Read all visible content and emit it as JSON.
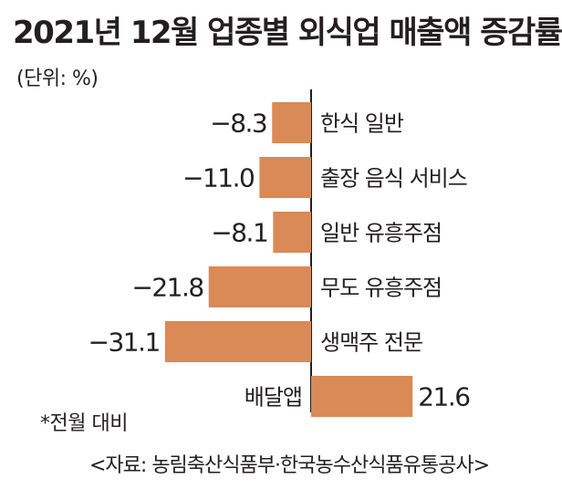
{
  "title": "2021년 12월 업종별 외식업 매출액 증감률",
  "unit": "(단위: %)",
  "note": "*전월 대비",
  "source": "<자료: 농림축산식품부·한국농수산식품유통공사>",
  "colors": {
    "bar": "#d98a56",
    "axis": "#231f20",
    "text": "#231f20"
  },
  "chart_data": {
    "type": "bar",
    "orientation": "horizontal",
    "title": "2021년 12월 업종별 외식업 매출액 증감률",
    "unit": "%",
    "categories": [
      "한식 일반",
      "출장 음식 서비스",
      "일반 유흥주점",
      "무도 유흥주점",
      "생맥주 전문",
      "배달앱"
    ],
    "values": [
      -8.3,
      -11.0,
      -8.1,
      -21.8,
      -31.1,
      21.6
    ],
    "value_labels": [
      "−8.3",
      "−11.0",
      "−8.1",
      "−21.8",
      "−31.1",
      "21.6"
    ],
    "xlim": [
      -31.1,
      21.6
    ]
  }
}
